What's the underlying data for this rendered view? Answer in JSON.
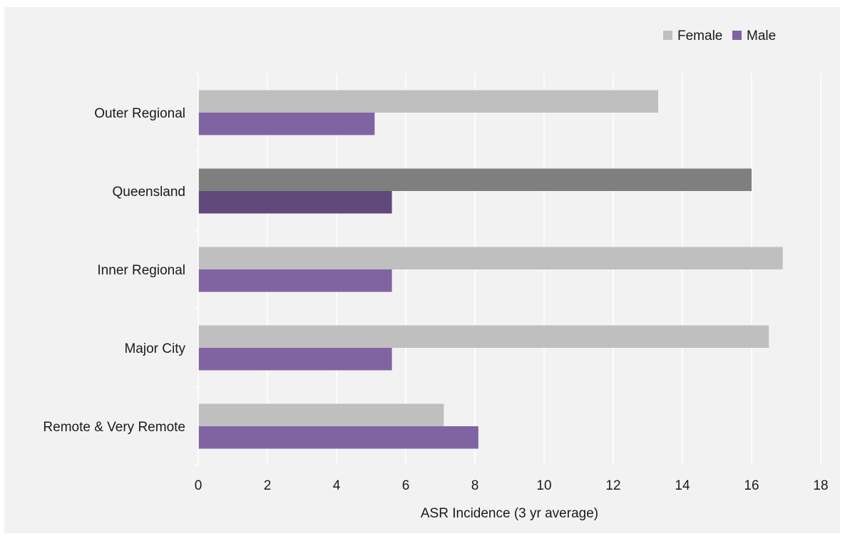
{
  "chart_data": {
    "type": "bar",
    "orientation": "horizontal",
    "categories": [
      "Outer Regional",
      "Queensland",
      "Inner Regional",
      "Major City",
      "Remote & Very Remote"
    ],
    "series": [
      {
        "name": "Female",
        "values": [
          13.3,
          16.0,
          16.9,
          16.5,
          7.1
        ],
        "color": "#bfbfbf",
        "highlight_color": "#7f7f7f"
      },
      {
        "name": "Male",
        "values": [
          5.1,
          5.6,
          5.6,
          5.6,
          8.1
        ],
        "color": "#8064a2",
        "highlight_color": "#604a7b"
      }
    ],
    "highlight_category": "Queensland",
    "xlabel": "ASR Incidence (3 yr average)",
    "ylabel": "",
    "xlim": [
      0,
      18
    ],
    "xticks": [
      0,
      2,
      4,
      6,
      8,
      10,
      12,
      14,
      16,
      18
    ],
    "grid": true,
    "legend_position": "top-right",
    "background": "#f2f2f2",
    "gridline_color": "#ffffff"
  }
}
